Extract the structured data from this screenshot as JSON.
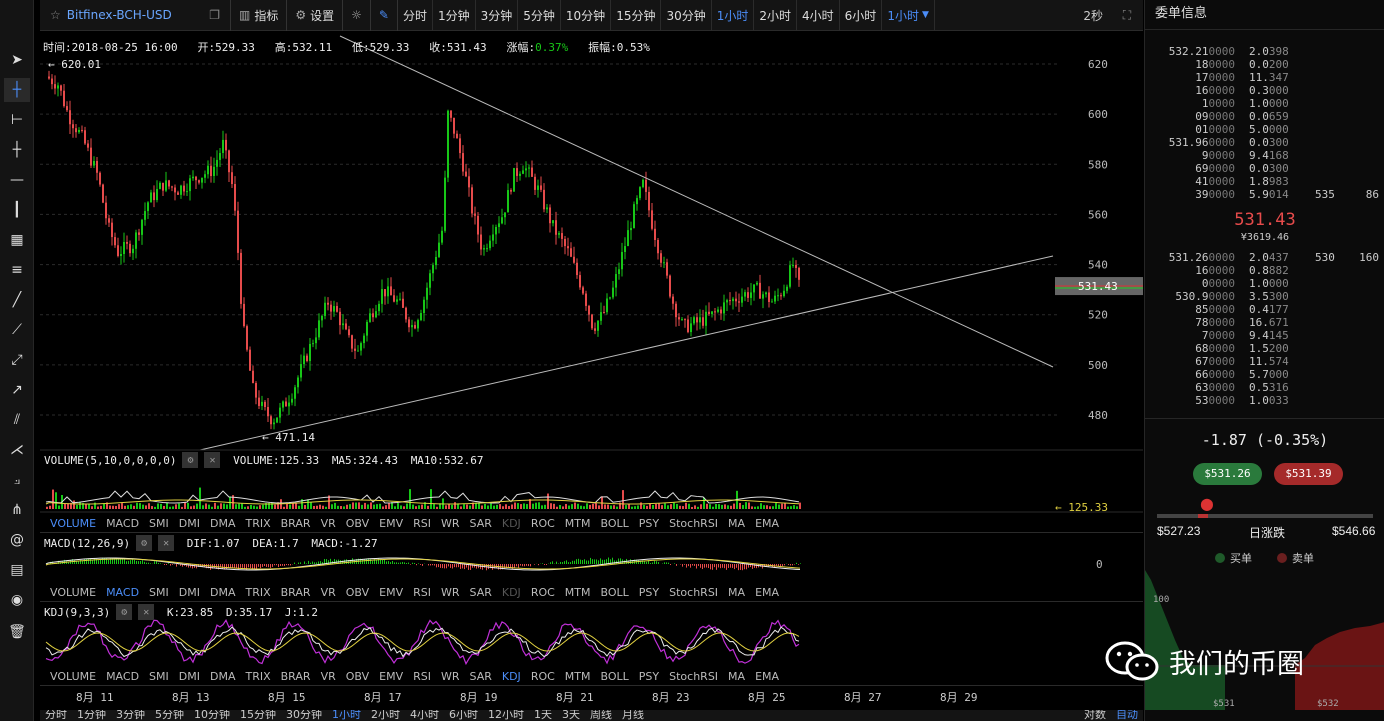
{
  "toolbar": {
    "symbol": "Bitfinex-BCH-USD",
    "indicator_label": "指标",
    "settings_label": "设置",
    "timeframes": [
      "分时",
      "1分钟",
      "3分钟",
      "5分钟",
      "10分钟",
      "15分钟",
      "30分钟",
      "1小时",
      "2小时",
      "4小时",
      "6小时"
    ],
    "active_timeframe": "1小时",
    "dropdown_value": "1小时",
    "speed": "2秒"
  },
  "legend": {
    "time_label": "时间:",
    "time": "2018-08-25 16:00",
    "open_label": "开:",
    "open": "529.33",
    "high_label": "高:",
    "high": "532.11",
    "low_label": "低:",
    "low": "529.33",
    "close_label": "收:",
    "close": "531.43",
    "change_label": "涨幅:",
    "change": "0.37%",
    "amp_label": "振幅:",
    "amp": "0.53%"
  },
  "price_chart": {
    "y_ticks": [
      "620",
      "600",
      "580",
      "560",
      "540",
      "520",
      "500",
      "480"
    ],
    "high_marker": "620.01",
    "low_marker": "471.14",
    "current_price_tag": "531.43"
  },
  "volume": {
    "title": "VOLUME(5,10,0,0,0,0)",
    "vol_label": "VOLUME:",
    "vol": "125.33",
    "ma5_label": "MA5:",
    "ma5": "324.43",
    "ma10_label": "MA10:",
    "ma10": "532.67",
    "last_tag": "125.33"
  },
  "indicator_tabs": [
    "VOLUME",
    "MACD",
    "SMI",
    "DMI",
    "DMA",
    "TRIX",
    "BRAR",
    "VR",
    "OBV",
    "EMV",
    "RSI",
    "WR",
    "SAR",
    "KDJ",
    "ROC",
    "MTM",
    "BOLL",
    "PSY",
    "StochRSI",
    "MA",
    "EMA"
  ],
  "macd": {
    "title": "MACD(12,26,9)",
    "dif_label": "DIF:",
    "dif": "1.07",
    "dea_label": "DEA:",
    "dea": "1.7",
    "macd_label": "MACD:",
    "macd": "-1.27",
    "zero_tick": "0"
  },
  "kdj": {
    "title": "KDJ(9,3,3)",
    "k_label": "K:",
    "k": "23.85",
    "d_label": "D:",
    "d": "35.17",
    "j_label": "J:",
    "j": "1.2"
  },
  "x_axis": [
    "8月 11",
    "8月 13",
    "8月 15",
    "8月 17",
    "8月 19",
    "8月 21",
    "8月 23",
    "8月 25",
    "8月 27",
    "8月 29"
  ],
  "bottom_timeframes": [
    "分时",
    "1分钟",
    "3分钟",
    "5分钟",
    "10分钟",
    "15分钟",
    "30分钟",
    "1小时",
    "2小时",
    "4小时",
    "6小时",
    "12小时",
    "1天",
    "3天",
    "周线",
    "月线"
  ],
  "bottom_right": [
    "对数",
    "自动"
  ],
  "orderbook": {
    "title": "委单信息",
    "asks": [
      {
        "p": "532.21",
        "pd": "0000",
        "a": "2.0",
        "ad": "398",
        "x1": "",
        "x2": ""
      },
      {
        "p": "18",
        "pd": "0000",
        "a": "0.0",
        "ad": "200",
        "x1": "",
        "x2": ""
      },
      {
        "p": "17",
        "pd": "0000",
        "a": "11.",
        "ad": "347",
        "x1": "",
        "x2": ""
      },
      {
        "p": "16",
        "pd": "0000",
        "a": "0.3",
        "ad": "000",
        "x1": "",
        "x2": ""
      },
      {
        "p": "1",
        "pd": "0000",
        "a": "1.0",
        "ad": "000",
        "x1": "",
        "x2": ""
      },
      {
        "p": "09",
        "pd": "0000",
        "a": "0.0",
        "ad": "659",
        "x1": "",
        "x2": ""
      },
      {
        "p": "01",
        "pd": "0000",
        "a": "5.0",
        "ad": "000",
        "x1": "",
        "x2": ""
      },
      {
        "p": "531.96",
        "pd": "0000",
        "a": "0.0",
        "ad": "300",
        "x1": "",
        "x2": ""
      },
      {
        "p": "9",
        "pd": "0000",
        "a": "9.4",
        "ad": "168",
        "x1": "",
        "x2": ""
      },
      {
        "p": "69",
        "pd": "0000",
        "a": "0.0",
        "ad": "300",
        "x1": "",
        "x2": ""
      },
      {
        "p": "41",
        "pd": "0000",
        "a": "1.8",
        "ad": "983",
        "x1": "",
        "x2": ""
      },
      {
        "p": "39",
        "pd": "0000",
        "a": "5.9",
        "ad": "014",
        "x1": "535",
        "x2": "86"
      }
    ],
    "last_price": "531.43",
    "last_cny": "¥3619.46",
    "bids": [
      {
        "p": "531.26",
        "pd": "0000",
        "a": "2.0",
        "ad": "437",
        "x1": "530",
        "x2": "160"
      },
      {
        "p": "16",
        "pd": "0000",
        "a": "0.8",
        "ad": "882",
        "x1": "",
        "x2": ""
      },
      {
        "p": "0",
        "pd": "0000",
        "a": "1.0",
        "ad": "000",
        "x1": "",
        "x2": ""
      },
      {
        "p": "530.9",
        "pd": "0000",
        "a": "3.5",
        "ad": "300",
        "x1": "",
        "x2": ""
      },
      {
        "p": "85",
        "pd": "0000",
        "a": "0.4",
        "ad": "177",
        "x1": "",
        "x2": ""
      },
      {
        "p": "78",
        "pd": "0000",
        "a": "16.",
        "ad": "671",
        "x1": "",
        "x2": ""
      },
      {
        "p": "7",
        "pd": "0000",
        "a": "9.4",
        "ad": "145",
        "x1": "",
        "x2": ""
      },
      {
        "p": "68",
        "pd": "0000",
        "a": "1.5",
        "ad": "200",
        "x1": "",
        "x2": ""
      },
      {
        "p": "67",
        "pd": "0000",
        "a": "11.",
        "ad": "574",
        "x1": "",
        "x2": ""
      },
      {
        "p": "66",
        "pd": "0000",
        "a": "5.7",
        "ad": "000",
        "x1": "",
        "x2": ""
      },
      {
        "p": "63",
        "pd": "0000",
        "a": "0.5",
        "ad": "316",
        "x1": "",
        "x2": ""
      },
      {
        "p": "53",
        "pd": "0000",
        "a": "1.0",
        "ad": "033",
        "x1": "",
        "x2": ""
      }
    ],
    "change": "-1.87 (-0.35%)",
    "best_bid": "$531.26",
    "best_ask": "$531.39",
    "range_low": "$527.23",
    "range_label": "日涨跌",
    "range_high": "$546.66",
    "range_position": 0.23,
    "buy_label": "买单",
    "sell_label": "卖单",
    "depth_tick": "100",
    "depth_x": [
      "$531",
      "$532"
    ]
  },
  "watermark": "我们的币圈",
  "colors": {
    "up": "#17c717",
    "down": "#e64b4b",
    "accent": "#4b8df8",
    "yellow": "#f0e44d"
  }
}
